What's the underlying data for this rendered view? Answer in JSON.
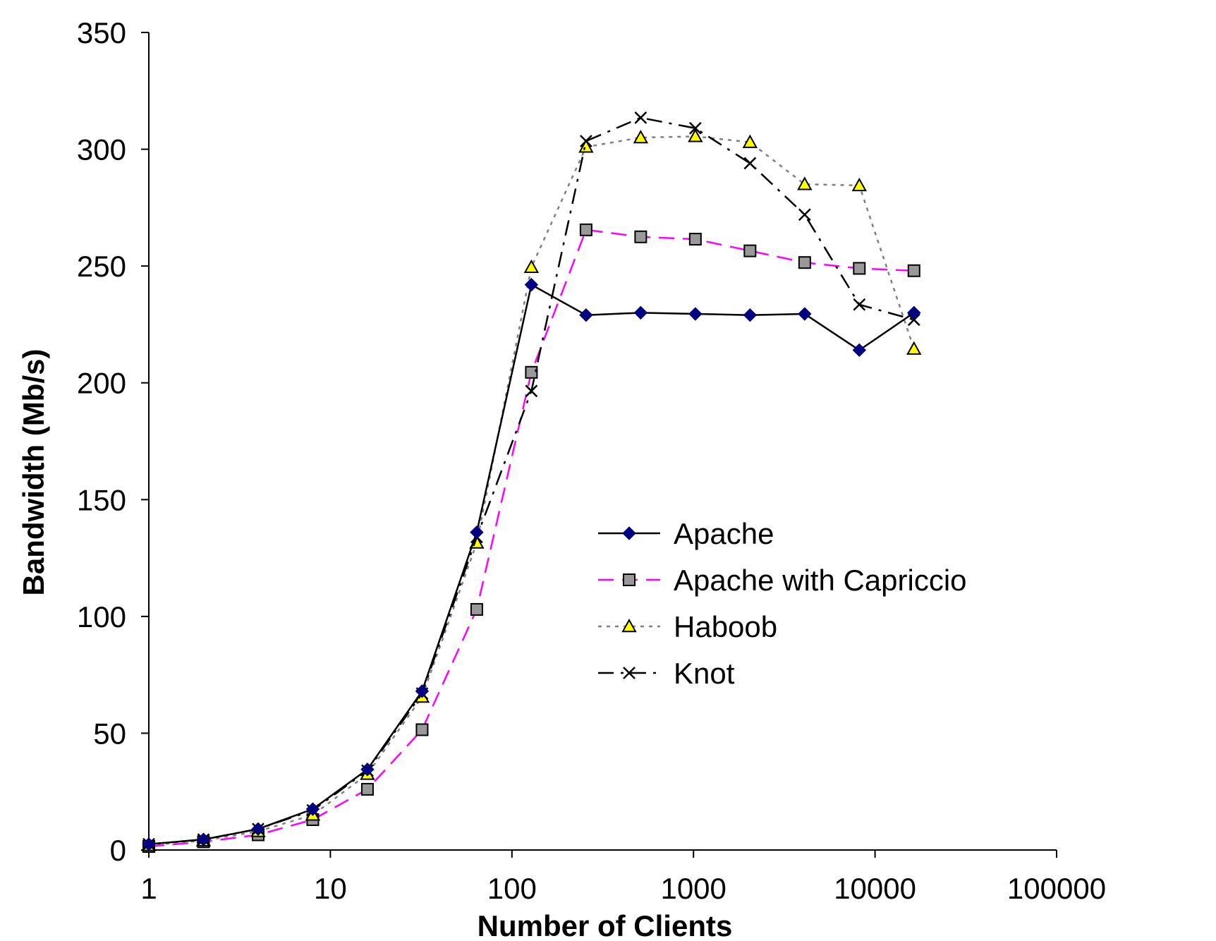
{
  "chart_data": {
    "type": "line",
    "title": "",
    "xlabel": "Number of Clients",
    "ylabel": "Bandwidth (Mb/s)",
    "x_scale": "log10",
    "xlim": [
      1,
      100000
    ],
    "ylim": [
      0,
      350
    ],
    "x_ticks": [
      1,
      10,
      100,
      1000,
      10000,
      100000
    ],
    "x_tick_labels": [
      "1",
      "10",
      "100",
      "1000",
      "10000",
      "100000"
    ],
    "y_ticks": [
      0,
      50,
      100,
      150,
      200,
      250,
      300,
      350
    ],
    "y_tick_labels": [
      "0",
      "50",
      "100",
      "150",
      "200",
      "250",
      "300",
      "350"
    ],
    "grid": false,
    "legend_position": "center-right",
    "x": [
      1,
      2,
      4,
      8,
      16,
      32,
      64,
      128,
      256,
      512,
      1024,
      2048,
      4096,
      8192,
      16384
    ],
    "series": [
      {
        "name": "Apache",
        "color": "#000000",
        "marker_color": "#000080",
        "marker": "diamond",
        "line_style": "solid",
        "values": [
          2.5,
          4.5,
          9,
          17.5,
          34.5,
          68,
          136,
          242,
          229,
          230,
          229.5,
          229,
          229.5,
          214,
          230
        ]
      },
      {
        "name": "Apache with Capriccio",
        "color": "#ff00ff",
        "marker_color": "#999999",
        "marker": "square",
        "line_style": "dashed",
        "values": [
          1.5,
          3.5,
          6.5,
          13,
          26,
          51.5,
          103,
          204.5,
          265.5,
          262.5,
          261.5,
          256.5,
          251.5,
          249,
          248
        ]
      },
      {
        "name": "Haboob",
        "color": "#808080",
        "marker_color": "#ffff00",
        "marker": "triangle",
        "line_style": "dotted",
        "values": [
          2,
          4,
          8,
          15,
          32.5,
          65.5,
          131.5,
          249.5,
          301,
          305,
          305.5,
          303,
          285,
          284.5,
          214.5
        ]
      },
      {
        "name": "Knot",
        "color": "#000000",
        "marker_color": "#000000",
        "marker": "x",
        "line_style": "dashdot",
        "values": [
          2.5,
          4.5,
          9,
          17,
          34,
          67,
          134,
          196.5,
          303.5,
          313.5,
          309,
          294,
          272,
          233.5,
          227
        ]
      }
    ]
  }
}
